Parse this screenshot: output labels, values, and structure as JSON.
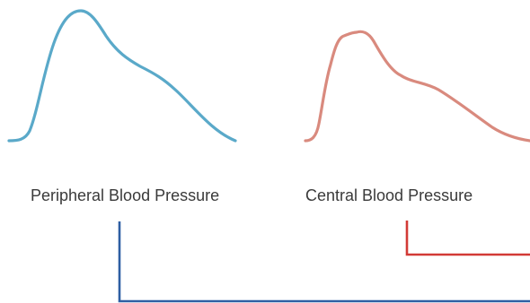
{
  "labels": {
    "peripheral": "Peripheral  Blood Pressure",
    "central": "Central Blood Pressure"
  },
  "colors": {
    "peripheral_wave": "#5aa9c9",
    "central_wave": "#d98a7e",
    "peripheral_connector": "#2e5fa3",
    "central_connector": "#d23a36"
  }
}
